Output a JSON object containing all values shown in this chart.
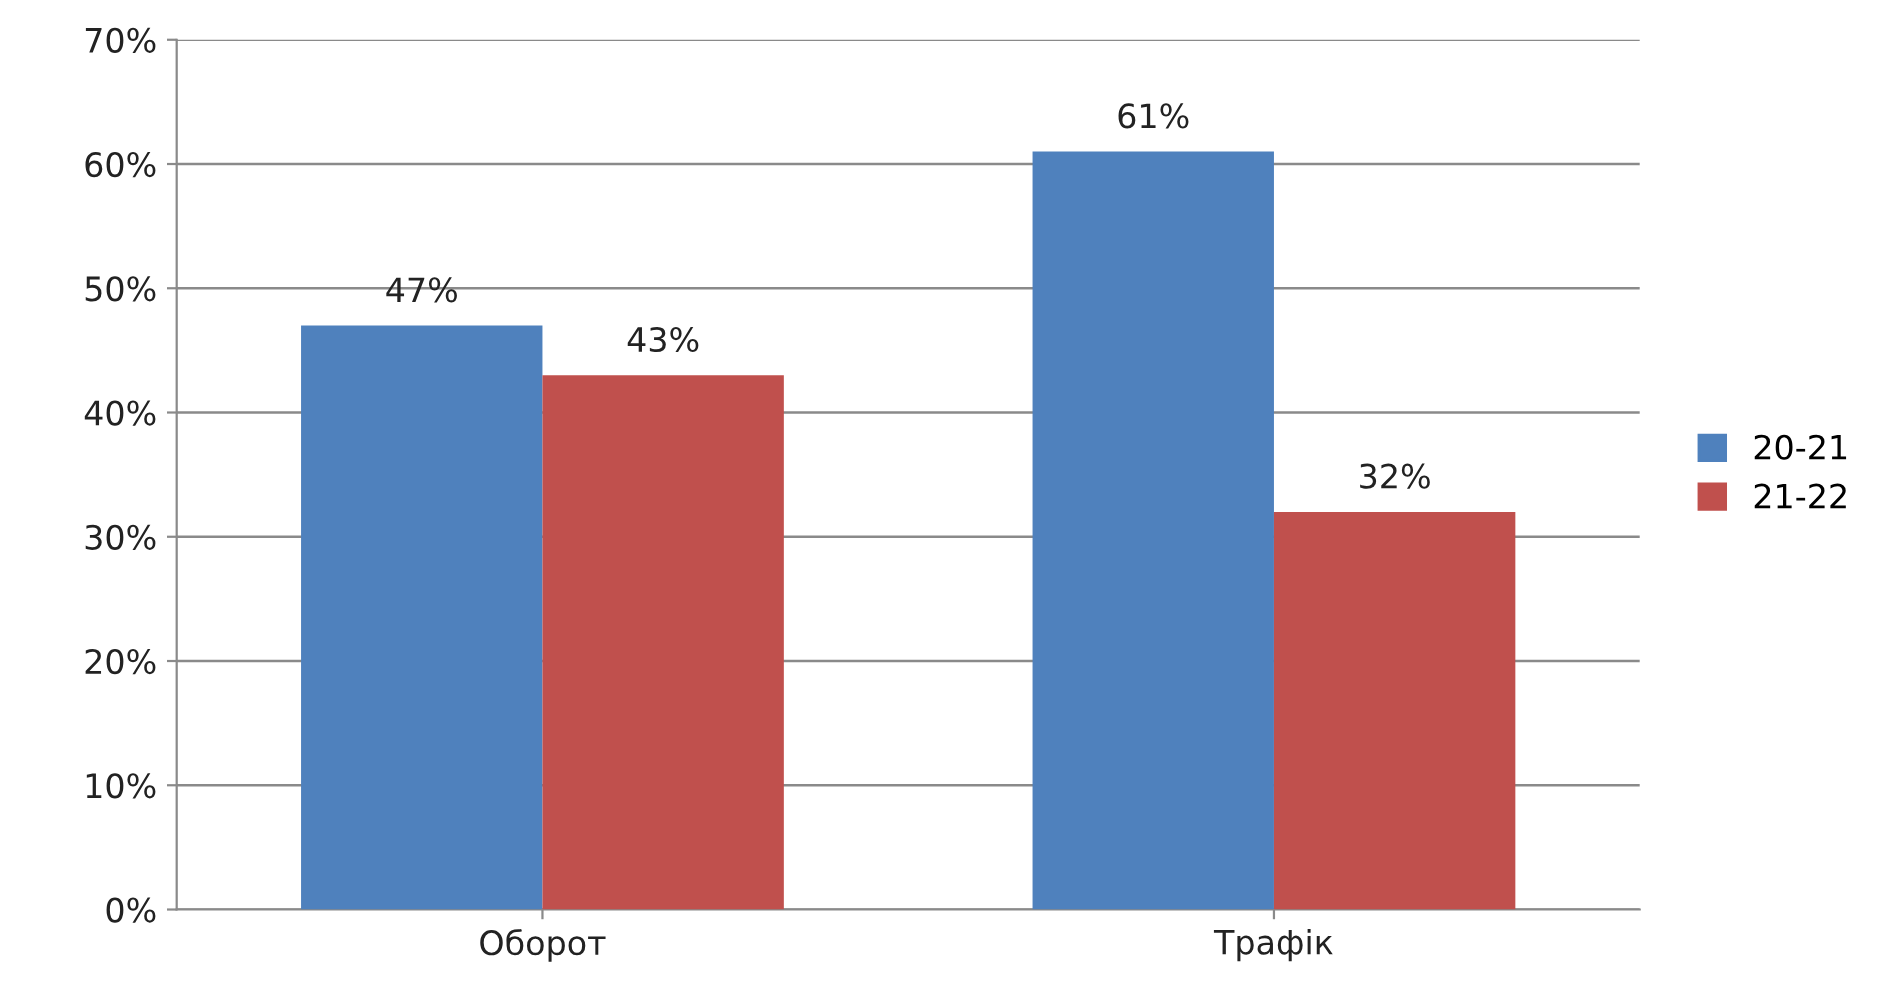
{
  "chart_data": {
    "type": "bar",
    "categories": [
      "Оборот",
      "Трафік"
    ],
    "series": [
      {
        "name": "20-21",
        "color": "#4f81bd",
        "values": [
          47,
          61
        ],
        "value_labels": [
          "47%",
          "61%"
        ]
      },
      {
        "name": "21-22",
        "color": "#c0504d",
        "values": [
          43,
          32
        ],
        "value_labels": [
          "43%",
          "32%"
        ]
      }
    ],
    "ylim": [
      0,
      70
    ],
    "yticks": [
      {
        "value": 0,
        "label": "0%"
      },
      {
        "value": 10,
        "label": "10%"
      },
      {
        "value": 20,
        "label": "20%"
      },
      {
        "value": 30,
        "label": "30%"
      },
      {
        "value": 40,
        "label": "40%"
      },
      {
        "value": 50,
        "label": "50%"
      },
      {
        "value": 60,
        "label": "60%"
      },
      {
        "value": 70,
        "label": "70%"
      }
    ],
    "grid": "y",
    "legend": "right"
  }
}
